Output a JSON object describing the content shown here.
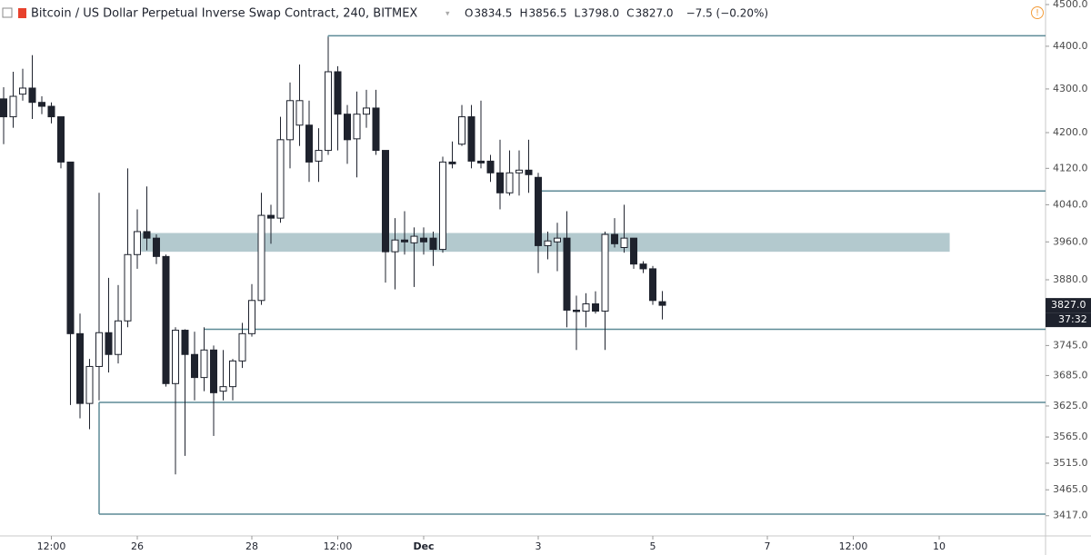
{
  "chart_data": {
    "type": "candlestick",
    "title": "Bitcoin / US Dollar Perpetual Inverse Swap Contract, 240, BITMEX",
    "ohlc": [
      {
        "key": "O",
        "text": "3834.5"
      },
      {
        "key": "H",
        "text": "3856.5"
      },
      {
        "key": "L",
        "text": "3798.0"
      },
      {
        "key": "C",
        "text": "3827.0"
      }
    ],
    "change": "−7.5 (−0.20%)",
    "price_label": "3827.0",
    "countdown": "37:32",
    "log_scale": true,
    "x": [
      0,
      1,
      2,
      3,
      4,
      5,
      6,
      7,
      8,
      9,
      10,
      11,
      12,
      13,
      14,
      15,
      16,
      17,
      18,
      19,
      20,
      21,
      22,
      23,
      24,
      25,
      26,
      27,
      28,
      29,
      30,
      31,
      32,
      33,
      34,
      35,
      36,
      37,
      38,
      39,
      40,
      41,
      42,
      43,
      44,
      45,
      46,
      47,
      48,
      49,
      50,
      51,
      52,
      53,
      54,
      55,
      56,
      57,
      58,
      59,
      60,
      61,
      62,
      63,
      64,
      65,
      66,
      67,
      68,
      69
    ],
    "open": [
      4277,
      4236,
      4288,
      4302,
      4269,
      4260,
      4236,
      4134,
      3769,
      3630,
      3703,
      3771,
      3727,
      3795,
      3933,
      3982,
      3968,
      3929,
      3669,
      3776,
      3727,
      3681,
      3736,
      3654,
      3663,
      3714,
      3769,
      3837,
      4017,
      4011,
      4184,
      4217,
      4217,
      4136,
      4160,
      4340,
      4242,
      4186,
      4242,
      4256,
      4160,
      3939,
      3964,
      3958,
      3968,
      3968,
      3944,
      4134,
      4174,
      4236,
      4136,
      4136,
      4110,
      4066,
      4110,
      4116,
      4100,
      3952,
      3960,
      3968,
      3817,
      3815,
      3830,
      3815,
      3976,
      3948,
      3968,
      3913,
      3903,
      3834.5
    ],
    "high": [
      4304,
      4340,
      4347,
      4379,
      4283,
      4269,
      4236,
      4134,
      3810,
      3718,
      4066,
      3884,
      3869,
      4120,
      4030,
      4080,
      3976,
      3933,
      3782,
      3778,
      3773,
      3782,
      3745,
      3736,
      3718,
      3791,
      3871,
      4066,
      4040,
      4236,
      4315,
      4357,
      4273,
      4210,
      4422,
      4353,
      4263,
      4294,
      4298,
      4298,
      4160,
      4011,
      4026,
      3991,
      3991,
      3982,
      4146,
      4180,
      4263,
      4263,
      4273,
      4150,
      4184,
      4160,
      4160,
      4184,
      4110,
      3982,
      4001,
      4026,
      3847,
      3852,
      3856,
      3982,
      4011,
      4040,
      3968,
      3919,
      3909,
      3856.5
    ],
    "low": [
      4174,
      4211,
      4273,
      4231,
      4242,
      4221,
      4120,
      3627,
      3601,
      3580,
      3636,
      3691,
      3709,
      3782,
      3903,
      3942,
      3913,
      3663,
      3494,
      3529,
      3636,
      3654,
      3567,
      3636,
      3636,
      3700,
      3763,
      3828,
      3956,
      4001,
      4120,
      4170,
      4090,
      4090,
      4150,
      4160,
      4130,
      4100,
      4211,
      4150,
      3874,
      3860,
      3933,
      3865,
      3933,
      3909,
      3937,
      4120,
      4170,
      4120,
      4120,
      4090,
      4030,
      4060,
      4060,
      4066,
      3894,
      3923,
      3898,
      3782,
      3736,
      3782,
      3810,
      3736,
      3948,
      3937,
      3903,
      3894,
      3828,
      3798
    ],
    "close": [
      4236,
      4283,
      4302,
      4269,
      4260,
      4236,
      4134,
      3769,
      3630,
      3703,
      3771,
      3727,
      3795,
      3933,
      3982,
      3968,
      3929,
      3669,
      3776,
      3727,
      3681,
      3736,
      3651,
      3663,
      3714,
      3769,
      3837,
      4017,
      4011,
      4184,
      4273,
      4273,
      4134,
      4160,
      4340,
      4242,
      4184,
      4242,
      4256,
      4160,
      3939,
      3964,
      3960,
      3972,
      3960,
      3944,
      4134,
      4130,
      4236,
      4136,
      4132,
      4110,
      4066,
      4110,
      4116,
      4106,
      3952,
      3962,
      3968,
      3817,
      3815,
      3830,
      3815,
      3976,
      3956,
      3968,
      3913,
      3903,
      3837,
      3827
    ],
    "up_color": "#ffffff",
    "down_color": "#1e222d",
    "level_color": "#5d8a96",
    "levels": [
      {
        "price": 4425,
        "from": 34
      },
      {
        "price": 4070,
        "from": 56
      },
      {
        "price": 3778,
        "from": 21
      },
      {
        "price": 3632,
        "from": 10
      },
      {
        "price": 3420,
        "from": 10
      }
    ],
    "zone": {
      "low": 3939,
      "high": 3979,
      "from": 14.4,
      "to": 99.1,
      "color": "#b3c9ce"
    },
    "xlim": [
      -0.38,
      109.14
    ],
    "ylim": [
      3380,
      4511
    ],
    "xticks": [
      {
        "value": 5,
        "label": "12:00"
      },
      {
        "value": 14,
        "label": "26"
      },
      {
        "value": 26,
        "label": "28"
      },
      {
        "value": 35,
        "label": "12:00"
      },
      {
        "value": 44,
        "label": "Dec"
      },
      {
        "value": 56,
        "label": "3"
      },
      {
        "value": 68,
        "label": "5"
      },
      {
        "value": 80,
        "label": "7"
      },
      {
        "value": 89,
        "label": "12:00"
      },
      {
        "value": 98,
        "label": "10"
      }
    ],
    "yticks": [
      {
        "value": 4500,
        "label": "4500.0"
      },
      {
        "value": 4400,
        "label": "4400.0"
      },
      {
        "value": 4300,
        "label": "4300.0"
      },
      {
        "value": 4200,
        "label": "4200.0"
      },
      {
        "value": 4120,
        "label": "4120.0"
      },
      {
        "value": 4040,
        "label": "4040.0"
      },
      {
        "value": 3960,
        "label": "3960.0"
      },
      {
        "value": 3880,
        "label": "3880.0"
      },
      {
        "value": 3745,
        "label": "3745.0"
      },
      {
        "value": 3685,
        "label": "3685.0"
      },
      {
        "value": 3625,
        "label": "3625.0"
      },
      {
        "value": 3565,
        "label": "3565.0"
      },
      {
        "value": 3515,
        "label": "3515.0"
      },
      {
        "value": 3465,
        "label": "3465.0"
      },
      {
        "value": 3417,
        "label": "3417.0"
      }
    ]
  }
}
